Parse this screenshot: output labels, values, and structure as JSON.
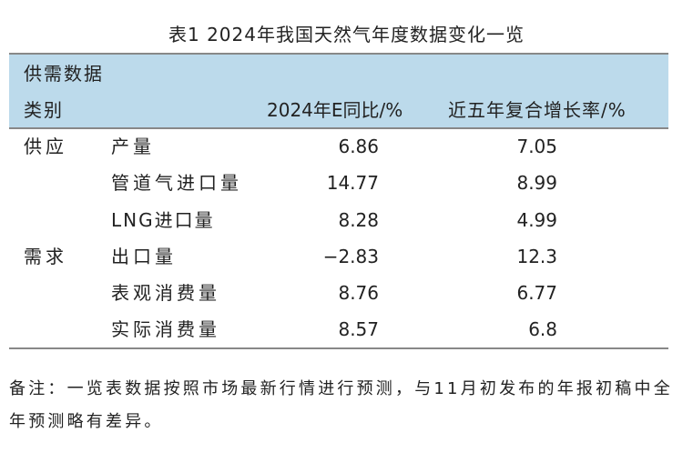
{
  "title": "表1  2024年我国天然气年度数据变化一览",
  "header": {
    "group_label": "供需数据",
    "col_category": "类别",
    "col_2024": "2024年E同比/%",
    "col_cagr": "近五年复合增长率/%"
  },
  "rows": [
    {
      "group": "供应",
      "item": "产量",
      "yoy": "6.86",
      "cagr": "7.05"
    },
    {
      "group": "",
      "item": "管道气进口量",
      "yoy": "14.77",
      "cagr": "8.99"
    },
    {
      "group": "",
      "item": "LNG进口量",
      "yoy": "8.28",
      "cagr": "4.99"
    },
    {
      "group": "需求",
      "item": "出口量",
      "yoy": "−2.83",
      "cagr": "12.3"
    },
    {
      "group": "",
      "item": "表观消费量",
      "yoy": "8.76",
      "cagr": "6.77"
    },
    {
      "group": "",
      "item": "实际消费量",
      "yoy": "8.57",
      "cagr": "6.8"
    }
  ],
  "note": "备注：一览表数据按照市场最新行情进行预测，与11月初发布的年报初稿中全年预测略有差异。"
}
